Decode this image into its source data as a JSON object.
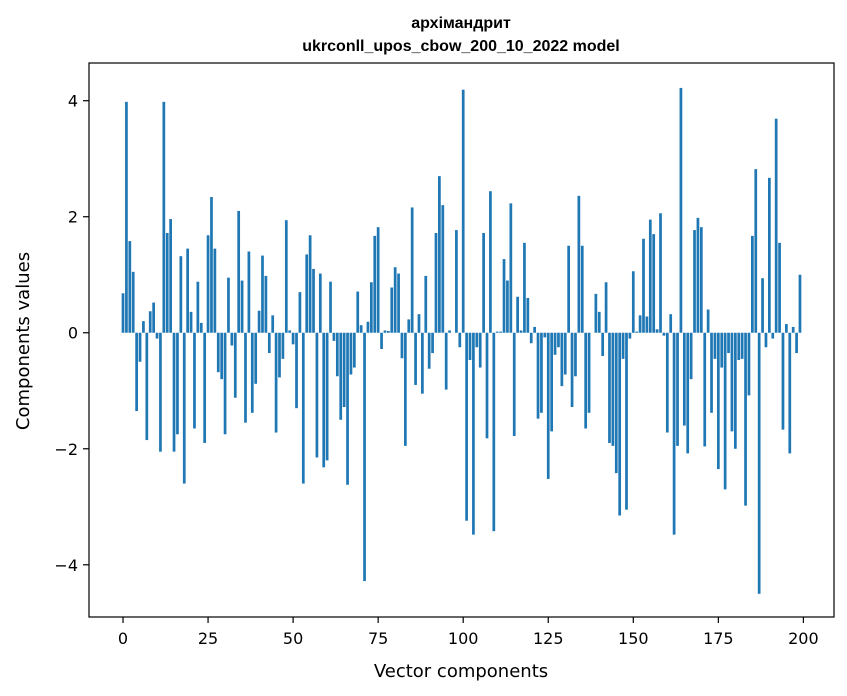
{
  "chart_data": {
    "type": "bar",
    "title_line1": "архімандрит",
    "title_line2": "ukrconll_upos_cbow_200_10_2022 model",
    "xlabel": "Vector components",
    "ylabel": "Components values",
    "xlim": [
      -10,
      209
    ],
    "ylim": [
      -4.9,
      4.65
    ],
    "xticks": [
      0,
      25,
      50,
      75,
      100,
      125,
      150,
      175,
      200
    ],
    "yticks": [
      -4,
      -2,
      0,
      2,
      4
    ],
    "ytick_labels": [
      "−4",
      "−2",
      "0",
      "2",
      "4"
    ],
    "color": "#1f77b4",
    "values": [
      0.68,
      3.98,
      1.58,
      1.05,
      -1.35,
      -0.5,
      0.2,
      -1.85,
      0.37,
      0.52,
      -0.1,
      -2.05,
      3.98,
      1.72,
      1.96,
      -2.05,
      -1.75,
      1.32,
      -2.6,
      1.45,
      0.36,
      -1.65,
      0.88,
      0.17,
      -1.9,
      1.68,
      2.34,
      1.45,
      -0.68,
      -0.8,
      -1.75,
      0.95,
      -0.22,
      -1.12,
      2.1,
      0.9,
      -1.55,
      1.4,
      -1.38,
      -0.88,
      0.38,
      1.33,
      0.98,
      -0.35,
      0.3,
      -1.72,
      -0.77,
      -0.45,
      1.94,
      0.04,
      -0.2,
      -1.3,
      0.7,
      -2.6,
      1.35,
      1.68,
      1.1,
      -2.15,
      1.02,
      -2.32,
      -2.2,
      0.88,
      -0.14,
      -0.75,
      -1.5,
      -1.28,
      -2.62,
      -0.72,
      -0.6,
      0.71,
      0.13,
      -4.28,
      0.19,
      0.87,
      1.67,
      1.82,
      -0.28,
      0.04,
      0.03,
      0.78,
      1.13,
      1.02,
      -0.44,
      -1.95,
      0.23,
      2.16,
      -0.9,
      0.32,
      -1.05,
      0.98,
      -0.62,
      -0.35,
      1.72,
      2.7,
      2.2,
      -0.98,
      0.04,
      0.0,
      1.77,
      -0.25,
      4.19,
      -3.24,
      -0.47,
      -3.48,
      -0.25,
      -0.6,
      1.72,
      -1.82,
      2.44,
      -3.42,
      0.02,
      0.02,
      1.27,
      0.9,
      2.23,
      -1.78,
      0.62,
      0.04,
      1.55,
      0.6,
      -0.18,
      0.1,
      -1.48,
      -1.38,
      -0.08,
      -2.52,
      -1.7,
      -0.38,
      -0.25,
      -0.92,
      -0.72,
      1.5,
      -1.28,
      -0.75,
      2.36,
      1.5,
      -1.65,
      -1.38,
      0.0,
      0.67,
      0.36,
      -0.4,
      0.87,
      -1.9,
      -1.95,
      -2.42,
      -3.15,
      -0.45,
      -3.05,
      -0.1,
      1.06,
      0.02,
      0.3,
      1.62,
      0.28,
      1.95,
      1.7,
      0.06,
      2.06,
      -0.05,
      -1.72,
      0.32,
      -3.48,
      -1.95,
      4.22,
      -1.6,
      -2.08,
      -0.8,
      1.77,
      1.98,
      1.82,
      -1.96,
      0.4,
      -1.38,
      -0.45,
      -2.35,
      -0.6,
      -2.7,
      -0.35,
      -1.7,
      -2.0,
      -0.47,
      -0.45,
      -2.98,
      -1.08,
      1.67,
      2.82,
      -4.5,
      0.94,
      -0.25,
      2.67,
      -0.1,
      3.69,
      1.55,
      -1.67,
      0.15,
      -2.08,
      0.1,
      -0.35,
      1.0
    ]
  }
}
